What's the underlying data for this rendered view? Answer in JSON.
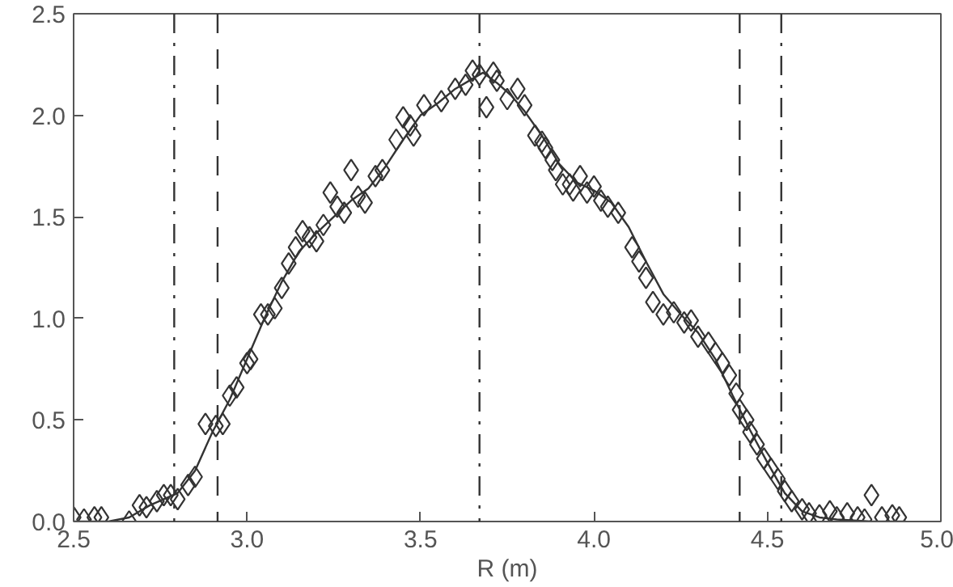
{
  "chart_data": {
    "type": "scatter",
    "xlabel": "R (m)",
    "xlim": [
      2.5,
      5.0
    ],
    "xticks": [
      {
        "value": 2.5,
        "label": "2.5"
      },
      {
        "value": 3.0,
        "label": "3.0"
      },
      {
        "value": 3.5,
        "label": "3.5"
      },
      {
        "value": 4.0,
        "label": "4.0"
      },
      {
        "value": 4.5,
        "label": "4.5"
      },
      {
        "value": 5.0,
        "label": "5.0"
      }
    ],
    "ylim": [
      0,
      2.5
    ],
    "yticks": [
      {
        "value": 0,
        "label": "0.0"
      },
      {
        "value": 0.5,
        "label": "0.5"
      },
      {
        "value": 1.0,
        "label": "1.0"
      },
      {
        "value": 1.5,
        "label": "1.5"
      },
      {
        "value": 2.0,
        "label": "2.0"
      },
      {
        "value": 2.5,
        "label": "2.5"
      }
    ],
    "grid": false,
    "series": [
      {
        "marker": "diamond",
        "color": "#333333",
        "x": [
          2.5,
          2.53,
          2.56,
          2.58,
          2.66,
          2.69,
          2.71,
          2.74,
          2.76,
          2.78,
          2.8,
          2.83,
          2.85,
          2.88,
          2.91,
          2.93,
          2.95,
          2.97,
          3.0,
          3.01,
          3.04,
          3.06,
          3.08,
          3.1,
          3.12,
          3.14,
          3.16,
          3.18,
          3.2,
          3.22,
          3.24,
          3.26,
          3.28,
          3.3,
          3.32,
          3.34,
          3.37,
          3.39,
          3.43,
          3.45,
          3.47,
          3.48,
          3.51,
          3.56,
          3.6,
          3.63,
          3.65,
          3.67,
          3.69,
          3.71,
          3.72,
          3.75,
          3.78,
          3.8,
          3.83,
          3.85,
          3.86,
          3.88,
          3.89,
          3.91,
          3.93,
          3.94,
          3.96,
          3.98,
          4.0,
          4.02,
          4.04,
          4.07,
          4.11,
          4.13,
          4.15,
          4.17,
          4.2,
          4.23,
          4.26,
          4.28,
          4.3,
          4.33,
          4.35,
          4.37,
          4.39,
          4.41,
          4.42,
          4.44,
          4.45,
          4.47,
          4.49,
          4.51,
          4.53,
          4.55,
          4.57,
          4.6,
          4.62,
          4.65,
          4.68,
          4.7,
          4.73,
          4.76,
          4.78,
          4.8,
          4.83,
          4.86,
          4.88
        ],
        "values": [
          0.02,
          0.01,
          0.02,
          0.02,
          0.0,
          0.08,
          0.07,
          0.1,
          0.13,
          0.13,
          0.11,
          0.18,
          0.22,
          0.48,
          0.47,
          0.48,
          0.62,
          0.66,
          0.78,
          0.8,
          1.02,
          1.02,
          1.05,
          1.15,
          1.27,
          1.35,
          1.43,
          1.4,
          1.38,
          1.46,
          1.62,
          1.55,
          1.52,
          1.73,
          1.6,
          1.57,
          1.7,
          1.73,
          1.88,
          1.99,
          1.95,
          1.9,
          2.05,
          2.07,
          2.13,
          2.15,
          2.22,
          2.2,
          2.04,
          2.21,
          2.17,
          2.08,
          2.13,
          2.05,
          1.9,
          1.87,
          1.84,
          1.78,
          1.73,
          1.66,
          1.66,
          1.63,
          1.7,
          1.62,
          1.65,
          1.58,
          1.55,
          1.52,
          1.35,
          1.28,
          1.2,
          1.08,
          1.02,
          1.03,
          0.98,
          0.99,
          0.91,
          0.88,
          0.83,
          0.78,
          0.72,
          0.63,
          0.55,
          0.5,
          0.44,
          0.38,
          0.31,
          0.26,
          0.21,
          0.15,
          0.1,
          0.06,
          0.04,
          0.03,
          0.05,
          0.02,
          0.04,
          0.02,
          0.01,
          0.13,
          0.02,
          0.03,
          0.02
        ]
      },
      {
        "type": "line",
        "color": "#333333",
        "x": [
          2.5,
          2.6,
          2.66,
          2.72,
          2.8,
          2.85,
          2.9,
          2.95,
          3.0,
          3.05,
          3.1,
          3.15,
          3.2,
          3.25,
          3.3,
          3.35,
          3.4,
          3.45,
          3.5,
          3.55,
          3.6,
          3.65,
          3.68,
          3.72,
          3.76,
          3.8,
          3.85,
          3.9,
          3.95,
          4.0,
          4.05,
          4.1,
          4.15,
          4.2,
          4.25,
          4.3,
          4.35,
          4.4,
          4.45,
          4.5,
          4.55,
          4.6,
          4.65,
          4.7,
          4.8,
          4.9
        ],
        "values": [
          0.0,
          0.0,
          0.02,
          0.08,
          0.14,
          0.25,
          0.44,
          0.6,
          0.8,
          1.0,
          1.18,
          1.33,
          1.42,
          1.5,
          1.58,
          1.64,
          1.75,
          1.88,
          2.0,
          2.06,
          2.13,
          2.18,
          2.21,
          2.16,
          2.1,
          2.02,
          1.9,
          1.76,
          1.67,
          1.63,
          1.57,
          1.45,
          1.28,
          1.12,
          1.02,
          0.93,
          0.8,
          0.62,
          0.45,
          0.29,
          0.14,
          0.05,
          0.02,
          0.01,
          0.0,
          0.0
        ]
      }
    ],
    "ref_lines": [
      {
        "axis": "x",
        "value": 2.79,
        "line_style": "dashdot",
        "color": "#333333"
      },
      {
        "axis": "x",
        "value": 2.915,
        "line_style": "dashed",
        "color": "#333333"
      },
      {
        "axis": "x",
        "value": 3.67,
        "line_style": "dashdot",
        "color": "#333333"
      },
      {
        "axis": "x",
        "value": 4.42,
        "line_style": "dashed",
        "color": "#333333"
      },
      {
        "axis": "x",
        "value": 4.54,
        "line_style": "dashdot",
        "color": "#333333"
      }
    ]
  }
}
